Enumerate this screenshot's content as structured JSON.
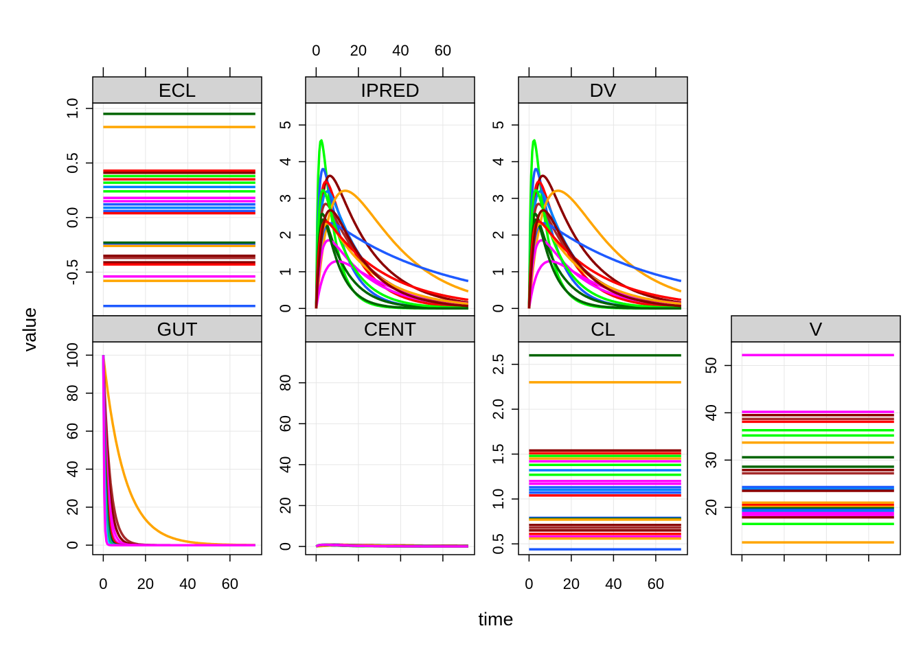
{
  "chart_data": {
    "type": "line",
    "layout": "lattice panels, 2 rows by 4 columns, shared x axis",
    "xlabel": "time",
    "ylabel": "value",
    "xlim": [
      -5,
      75
    ],
    "xticks": [
      0,
      20,
      40,
      60
    ],
    "xtick_labels": [
      "0",
      "20",
      "40",
      "60"
    ],
    "grid": true,
    "strip_color": "#d3d3d3",
    "line_colors": [
      "#0080ff",
      "#ff00ff",
      "#006400",
      "#ff0000",
      "#ffa500",
      "#00ff00",
      "#a52a2a",
      "#00ffff",
      "#8b0000",
      "#1e5aff"
    ],
    "panels": [
      {
        "name": "ECL",
        "ylim": [
          -0.9,
          1.05
        ],
        "yticks": [
          -0.5,
          0.0,
          0.5,
          1.0
        ],
        "ytick_labels": [
          "-0.5",
          "0.0",
          "0.5",
          "1.0"
        ],
        "series": [
          {
            "color": "#006400",
            "constant": 0.95
          },
          {
            "color": "#ffa500",
            "constant": 0.83
          },
          {
            "color": "#ff0000",
            "constant": 0.43
          },
          {
            "color": "#8b0000",
            "constant": 0.41
          },
          {
            "color": "#00ff00",
            "constant": 0.38
          },
          {
            "color": "#ff0000",
            "constant": 0.35
          },
          {
            "color": "#00ff00",
            "constant": 0.32
          },
          {
            "color": "#0080ff",
            "constant": 0.28
          },
          {
            "color": "#00ff00",
            "constant": 0.24
          },
          {
            "color": "#ff00ff",
            "constant": 0.18
          },
          {
            "color": "#ff00ff",
            "constant": 0.15
          },
          {
            "color": "#1e5aff",
            "constant": 0.12
          },
          {
            "color": "#0080ff",
            "constant": 0.09
          },
          {
            "color": "#1e5aff",
            "constant": 0.06
          },
          {
            "color": "#ff0000",
            "constant": 0.04
          },
          {
            "color": "#006400",
            "constant": -0.23
          },
          {
            "color": "#1e5aff",
            "constant": -0.25
          },
          {
            "color": "#ffa500",
            "constant": -0.26
          },
          {
            "color": "#8b0000",
            "constant": -0.35
          },
          {
            "color": "#a52a2a",
            "constant": -0.37
          },
          {
            "color": "#8b0000",
            "constant": -0.41
          },
          {
            "color": "#ff0000",
            "constant": -0.43
          },
          {
            "color": "#ff00ff",
            "constant": -0.54
          },
          {
            "color": "#ffa500",
            "constant": -0.58
          },
          {
            "color": "#1e5aff",
            "constant": -0.81
          }
        ]
      },
      {
        "name": "IPRED",
        "ylim": [
          -0.2,
          5.6
        ],
        "yticks": [
          0,
          1,
          2,
          3,
          4,
          5
        ],
        "ytick_labels": [
          "0",
          "1",
          "2",
          "3",
          "4",
          "5"
        ],
        "series": [
          {
            "color": "#00ff00",
            "scale": 100,
            "ka": 0.9,
            "ke": 0.16,
            "v": 15
          },
          {
            "color": "#1e5aff",
            "scale": 100,
            "ka": 0.7,
            "ke": 0.1,
            "v": 19
          },
          {
            "color": "#8b0000",
            "scale": 100,
            "ka": 0.35,
            "ke": 0.05,
            "v": 20
          },
          {
            "color": "#ff0000",
            "scale": 100,
            "ka": 0.5,
            "ke": 0.07,
            "v": 21
          },
          {
            "color": "#0080ff",
            "scale": 100,
            "ka": 0.45,
            "ke": 0.06,
            "v": 23
          },
          {
            "color": "#ffa500",
            "scale": 100,
            "ka": 0.12,
            "ke": 0.04,
            "v": 18
          },
          {
            "color": "#a52a2a",
            "scale": 100,
            "ka": 0.6,
            "ke": 0.05,
            "v": 28
          },
          {
            "color": "#006400",
            "scale": 100,
            "ka": 0.9,
            "ke": 0.09,
            "v": 30
          },
          {
            "color": "#ff00ff",
            "scale": 100,
            "ka": 0.4,
            "ke": 0.05,
            "v": 40
          },
          {
            "color": "#1e5aff",
            "scale": 100,
            "ka": 0.5,
            "ke": 0.018,
            "v": 38
          },
          {
            "color": "#ff00ff",
            "scale": 100,
            "ka": 0.2,
            "ke": 0.04,
            "v": 52
          },
          {
            "color": "#00ff00",
            "scale": 100,
            "ka": 0.8,
            "ke": 0.08,
            "v": 24
          },
          {
            "color": "#006400",
            "scale": 100,
            "ka": 0.6,
            "ke": 0.13,
            "v": 27
          },
          {
            "color": "#ffa500",
            "scale": 100,
            "ka": 0.5,
            "ke": 0.045,
            "v": 34
          },
          {
            "color": "#ff0000",
            "scale": 100,
            "ka": 0.7,
            "ke": 0.035,
            "v": 36
          },
          {
            "color": "#8b0000",
            "scale": 100,
            "ka": 0.3,
            "ke": 0.06,
            "v": 25
          }
        ]
      },
      {
        "name": "DV",
        "ylim": [
          -0.2,
          5.6
        ],
        "yticks": [
          0,
          1,
          2,
          3,
          4,
          5
        ],
        "ytick_labels": [
          "0",
          "1",
          "2",
          "3",
          "4",
          "5"
        ],
        "series": [
          {
            "color": "#00ff00",
            "scale": 100,
            "ka": 0.9,
            "ke": 0.16,
            "v": 15
          },
          {
            "color": "#1e5aff",
            "scale": 100,
            "ka": 0.7,
            "ke": 0.1,
            "v": 19
          },
          {
            "color": "#8b0000",
            "scale": 100,
            "ka": 0.35,
            "ke": 0.05,
            "v": 20
          },
          {
            "color": "#ff0000",
            "scale": 100,
            "ka": 0.5,
            "ke": 0.07,
            "v": 21
          },
          {
            "color": "#0080ff",
            "scale": 100,
            "ka": 0.45,
            "ke": 0.06,
            "v": 23
          },
          {
            "color": "#ffa500",
            "scale": 100,
            "ka": 0.12,
            "ke": 0.04,
            "v": 18
          },
          {
            "color": "#a52a2a",
            "scale": 100,
            "ka": 0.6,
            "ke": 0.05,
            "v": 28
          },
          {
            "color": "#006400",
            "scale": 100,
            "ka": 0.9,
            "ke": 0.09,
            "v": 30
          },
          {
            "color": "#ff00ff",
            "scale": 100,
            "ka": 0.4,
            "ke": 0.05,
            "v": 40
          },
          {
            "color": "#1e5aff",
            "scale": 100,
            "ka": 0.5,
            "ke": 0.018,
            "v": 38
          },
          {
            "color": "#ff00ff",
            "scale": 100,
            "ka": 0.2,
            "ke": 0.04,
            "v": 52
          },
          {
            "color": "#00ff00",
            "scale": 100,
            "ka": 0.8,
            "ke": 0.08,
            "v": 24
          },
          {
            "color": "#006400",
            "scale": 100,
            "ka": 0.6,
            "ke": 0.13,
            "v": 27
          },
          {
            "color": "#ffa500",
            "scale": 100,
            "ka": 0.5,
            "ke": 0.045,
            "v": 34
          },
          {
            "color": "#ff0000",
            "scale": 100,
            "ka": 0.7,
            "ke": 0.035,
            "v": 36
          },
          {
            "color": "#8b0000",
            "scale": 100,
            "ka": 0.3,
            "ke": 0.06,
            "v": 25
          }
        ]
      },
      {
        "name": "GUT",
        "ylim": [
          -5,
          107
        ],
        "yticks": [
          0,
          20,
          40,
          60,
          80,
          100
        ],
        "ytick_labels": [
          "0",
          "20",
          "40",
          "60",
          "80",
          "100"
        ],
        "series": [
          {
            "color": "#ffa500",
            "gut_ka": 0.1
          },
          {
            "color": "#a52a2a",
            "gut_ka": 0.32
          },
          {
            "color": "#8b0000",
            "gut_ka": 0.4
          },
          {
            "color": "#ff00ff",
            "gut_ka": 0.5
          },
          {
            "color": "#ff00ff",
            "gut_ka": 0.65
          },
          {
            "color": "#ff0000",
            "gut_ka": 0.75
          },
          {
            "color": "#006400",
            "gut_ka": 0.9
          },
          {
            "color": "#1e5aff",
            "gut_ka": 1.1
          },
          {
            "color": "#00ff00",
            "gut_ka": 1.3
          },
          {
            "color": "#0080ff",
            "gut_ka": 1.6
          },
          {
            "color": "#00ffff",
            "gut_ka": 2.0
          },
          {
            "color": "#ff00ff",
            "gut_ka": 2.6
          }
        ]
      },
      {
        "name": "CENT",
        "ylim": [
          -4,
          100
        ],
        "yticks": [
          0,
          20,
          40,
          60,
          80
        ],
        "ytick_labels": [
          "0",
          "20",
          "40",
          "60",
          "80"
        ],
        "series": [
          {
            "color": "#ff0000",
            "scale": 1,
            "ka": 0.6,
            "ke": 0.015,
            "v": 1
          },
          {
            "color": "#1e5aff",
            "scale": 1,
            "ka": 0.7,
            "ke": 0.018,
            "v": 1
          },
          {
            "color": "#006400",
            "scale": 1,
            "ka": 0.5,
            "ke": 0.022,
            "v": 1
          },
          {
            "color": "#a52a2a",
            "scale": 1,
            "ka": 0.4,
            "ke": 0.026,
            "v": 1
          },
          {
            "color": "#ffa500",
            "scale": 1,
            "ka": 0.8,
            "ke": 0.03,
            "v": 1
          },
          {
            "color": "#ff00ff",
            "scale": 1,
            "ka": 0.35,
            "ke": 0.035,
            "v": 1
          },
          {
            "color": "#8b0000",
            "scale": 1,
            "ka": 0.6,
            "ke": 0.04,
            "v": 1
          },
          {
            "color": "#0080ff",
            "scale": 1,
            "ka": 0.9,
            "ke": 0.045,
            "v": 1
          },
          {
            "color": "#ff00ff",
            "scale": 1,
            "ka": 0.5,
            "ke": 0.05,
            "v": 1
          },
          {
            "color": "#006400",
            "scale": 1,
            "ka": 0.45,
            "ke": 0.06,
            "v": 1
          },
          {
            "color": "#00ff00",
            "scale": 1,
            "ka": 1.1,
            "ke": 0.07,
            "v": 1
          },
          {
            "color": "#ff00ff",
            "scale": 1,
            "ka": 0.3,
            "ke": 0.055,
            "v": 1
          },
          {
            "color": "#ffa500",
            "scale": 1,
            "ka": 0.1,
            "ke": 0.04,
            "v": 1
          },
          {
            "color": "#1e5aff",
            "scale": 1,
            "ka": 0.6,
            "ke": 0.08,
            "v": 1
          },
          {
            "color": "#006400",
            "scale": 1,
            "ka": 0.7,
            "ke": 0.1,
            "v": 1
          },
          {
            "color": "#00ff00",
            "scale": 1,
            "ka": 0.9,
            "ke": 0.09,
            "v": 1
          },
          {
            "color": "#ff00ff",
            "scale": 1,
            "ka": 0.8,
            "ke": 0.065,
            "v": 1
          }
        ]
      },
      {
        "name": "CL",
        "ylim": [
          0.38,
          2.75
        ],
        "yticks": [
          0.5,
          1.0,
          1.5,
          2.0,
          2.5
        ],
        "ytick_labels": [
          "0.5",
          "1.0",
          "1.5",
          "2.0",
          "2.5"
        ],
        "series": [
          {
            "color": "#006400",
            "constant": 2.6
          },
          {
            "color": "#ffa500",
            "constant": 2.3
          },
          {
            "color": "#8b0000",
            "constant": 1.54
          },
          {
            "color": "#ff0000",
            "constant": 1.51
          },
          {
            "color": "#00ff00",
            "constant": 1.48
          },
          {
            "color": "#ffa500",
            "constant": 1.45
          },
          {
            "color": "#ff00ff",
            "constant": 1.42
          },
          {
            "color": "#00ff00",
            "constant": 1.38
          },
          {
            "color": "#0080ff",
            "constant": 1.32
          },
          {
            "color": "#00ff00",
            "constant": 1.27
          },
          {
            "color": "#ff00ff",
            "constant": 1.2
          },
          {
            "color": "#ff00ff",
            "constant": 1.17
          },
          {
            "color": "#1e5aff",
            "constant": 1.13
          },
          {
            "color": "#0080ff",
            "constant": 1.1
          },
          {
            "color": "#1e5aff",
            "constant": 1.07
          },
          {
            "color": "#ff0000",
            "constant": 1.04
          },
          {
            "color": "#1e5aff",
            "constant": 0.79
          },
          {
            "color": "#006400",
            "constant": 0.78
          },
          {
            "color": "#ffa500",
            "constant": 0.77
          },
          {
            "color": "#8b0000",
            "constant": 0.71
          },
          {
            "color": "#a52a2a",
            "constant": 0.68
          },
          {
            "color": "#8b0000",
            "constant": 0.65
          },
          {
            "color": "#ff0000",
            "constant": 0.61
          },
          {
            "color": "#ff00ff",
            "constant": 0.58
          },
          {
            "color": "#ffa500",
            "constant": 0.56
          },
          {
            "color": "#1e5aff",
            "constant": 0.44
          }
        ]
      },
      {
        "name": "V",
        "ylim": [
          10,
          55
        ],
        "yticks": [
          20,
          30,
          40,
          50
        ],
        "ytick_labels": [
          "20",
          "30",
          "40",
          "50"
        ],
        "series": [
          {
            "color": "#ff00ff",
            "constant": 52.2
          },
          {
            "color": "#ff00ff",
            "constant": 40.2
          },
          {
            "color": "#8b0000",
            "constant": 39.5
          },
          {
            "color": "#a52a2a",
            "constant": 38.7
          },
          {
            "color": "#ff0000",
            "constant": 38.1
          },
          {
            "color": "#00ff00",
            "constant": 36.3
          },
          {
            "color": "#00ff00",
            "constant": 35.2
          },
          {
            "color": "#ffa500",
            "constant": 33.7
          },
          {
            "color": "#006400",
            "constant": 30.6
          },
          {
            "color": "#006400",
            "constant": 28.6
          },
          {
            "color": "#8b0000",
            "constant": 27.9
          },
          {
            "color": "#a52a2a",
            "constant": 27.2
          },
          {
            "color": "#1e5aff",
            "constant": 24.3
          },
          {
            "color": "#0080ff",
            "constant": 23.9
          },
          {
            "color": "#8b0000",
            "constant": 23.5
          },
          {
            "color": "#ffa500",
            "constant": 21.0
          },
          {
            "color": "#ff0000",
            "constant": 20.5
          },
          {
            "color": "#ffa500",
            "constant": 20.1
          },
          {
            "color": "#006400",
            "constant": 19.8
          },
          {
            "color": "#1e5aff",
            "constant": 19.5
          },
          {
            "color": "#0080ff",
            "constant": 19.2
          },
          {
            "color": "#ff00ff",
            "constant": 18.8
          },
          {
            "color": "#ff00ff",
            "constant": 18.4
          },
          {
            "color": "#8b0000",
            "constant": 17.9
          },
          {
            "color": "#00ff00",
            "constant": 16.5
          },
          {
            "color": "#ffa500",
            "constant": 12.6
          }
        ]
      }
    ]
  }
}
